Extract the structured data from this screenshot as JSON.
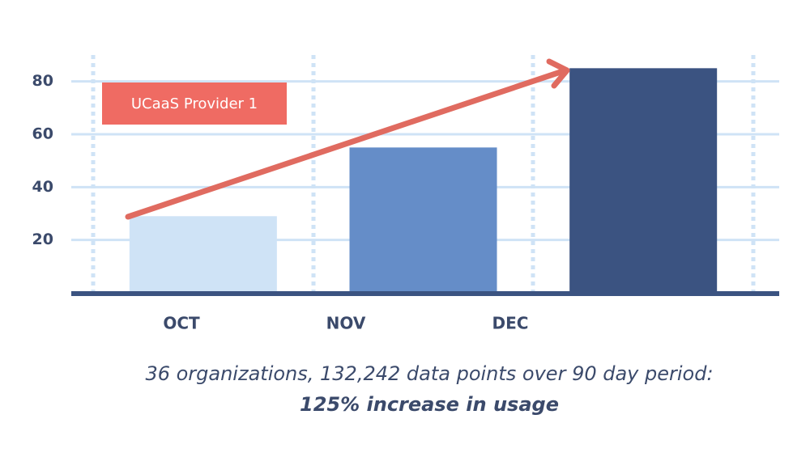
{
  "chart_data": {
    "type": "bar",
    "categories": [
      "OCT",
      "NOV",
      "DEC"
    ],
    "values": [
      29,
      55,
      85
    ],
    "colors": [
      "#cfe3f6",
      "#658dc8",
      "#3b5381"
    ],
    "ylim": [
      0,
      90
    ],
    "yticks": [
      20,
      40,
      60,
      80
    ],
    "grid": true,
    "annotation": "UCaaS Provider 1",
    "caption": "36 organizations, 132,242 data points over 90 day period:",
    "highlight": "125% increase in usage"
  }
}
